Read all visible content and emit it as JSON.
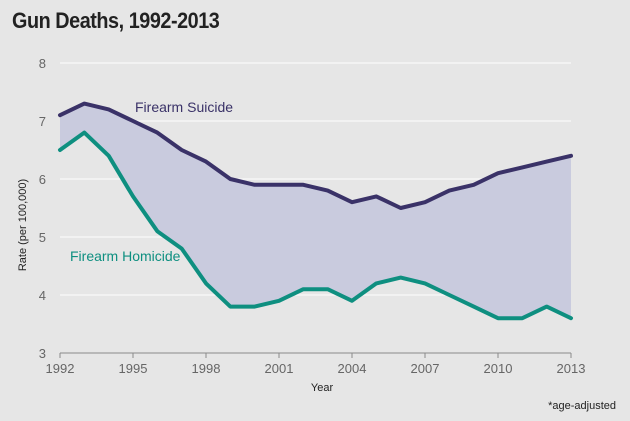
{
  "title": "Gun Deaths, 1992-2013",
  "footnote": "*age-adjusted",
  "colors": {
    "suicide": "#3a3268",
    "homicide": "#0e8f80",
    "fill": "#c9cbde",
    "grid": "#ffffff"
  },
  "chart_data": {
    "type": "line",
    "title": "Gun Deaths, 1992-2013",
    "xlabel": "Year",
    "ylabel": "Rate (per 100,000)",
    "xlim": [
      1992,
      2013
    ],
    "ylim": [
      3,
      8
    ],
    "x_ticks": [
      1992,
      1995,
      1998,
      2001,
      2004,
      2007,
      2010,
      2013
    ],
    "y_ticks": [
      3,
      4,
      5,
      6,
      7,
      8
    ],
    "grid": true,
    "x": [
      1992,
      1993,
      1994,
      1995,
      1996,
      1997,
      1998,
      1999,
      2000,
      2001,
      2002,
      2003,
      2004,
      2005,
      2006,
      2007,
      2008,
      2009,
      2010,
      2011,
      2012,
      2013
    ],
    "series": [
      {
        "name": "Firearm Suicide",
        "values": [
          7.1,
          7.3,
          7.2,
          7.0,
          6.8,
          6.5,
          6.3,
          6.0,
          5.9,
          5.9,
          5.9,
          5.8,
          5.6,
          5.7,
          5.5,
          5.6,
          5.8,
          5.9,
          6.1,
          6.2,
          6.3,
          6.4
        ]
      },
      {
        "name": "Firearm Homicide",
        "values": [
          6.5,
          6.8,
          6.4,
          5.7,
          5.1,
          4.8,
          4.2,
          3.8,
          3.8,
          3.9,
          4.1,
          4.1,
          3.9,
          4.2,
          4.3,
          4.2,
          4.0,
          3.8,
          3.6,
          3.6,
          3.8,
          3.6
        ]
      }
    ]
  }
}
